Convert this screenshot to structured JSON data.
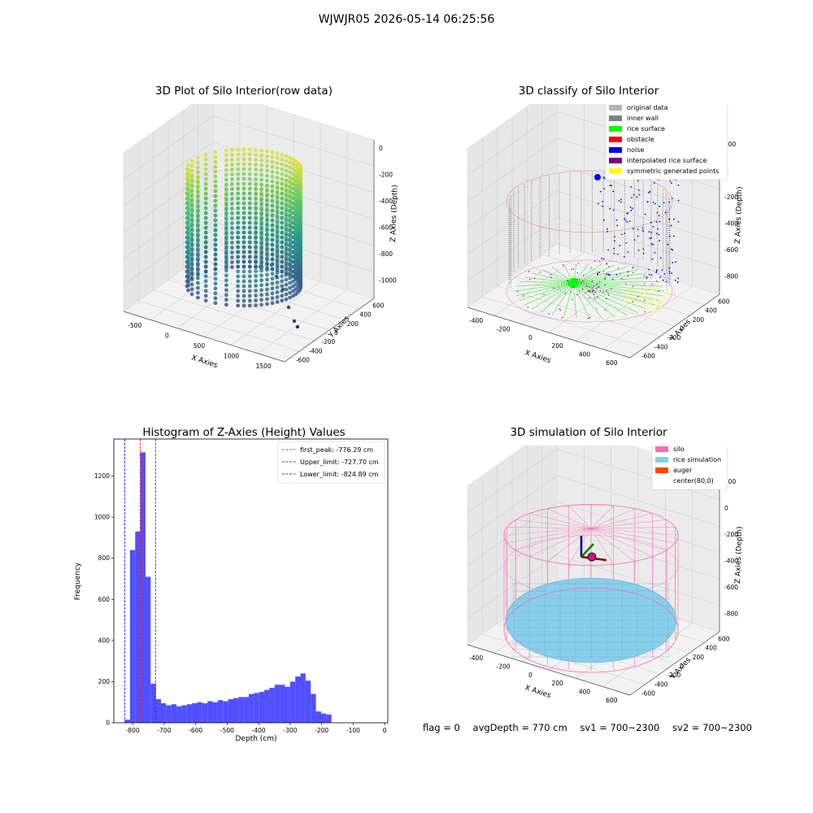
{
  "figure": {
    "suptitle": "WJWJR05 2026-05-14 06:25:56"
  },
  "status": {
    "flag": "flag = 0",
    "avg_depth": "avgDepth = 770 cm",
    "sv1": "sv1 = 700~2300",
    "sv2": "sv2 = 700~2300"
  },
  "chart_data": [
    {
      "type": "scatter",
      "projection": "3d",
      "title": "3D Plot of Silo Interior(row data)",
      "xlabel": "X Axies",
      "ylabel": "Y Axies",
      "zlabel": "Z Axies (Depth)",
      "x_ticks": [
        "-500",
        "0",
        "500",
        "1000",
        "1500"
      ],
      "y_ticks": [
        "600",
        "400",
        "200",
        "0",
        "-200",
        "-400",
        "-600"
      ],
      "z_ticks": [
        "0",
        "-200",
        "-400",
        "-600",
        "-800",
        "-1000"
      ],
      "colormap": "viridis",
      "grid": true
    },
    {
      "type": "scatter",
      "projection": "3d",
      "title": "3D classify of Silo Interior",
      "xlabel": "X Axies",
      "ylabel": "Y Axies",
      "zlabel": "Z Axies (Depth)",
      "x_ticks": [
        "-400",
        "-200",
        "0",
        "200",
        "400",
        "600"
      ],
      "y_ticks": [
        "600",
        "400",
        "200",
        "0",
        "-200",
        "-400",
        "-600"
      ],
      "z_ticks": [
        "200",
        "0",
        "-200",
        "-400",
        "-600",
        "-800"
      ],
      "legend": [
        {
          "label": "original data",
          "color": "#b4b4b4"
        },
        {
          "label": "inner wall",
          "color": "#808080"
        },
        {
          "label": "rice surface",
          "color": "#00ff00"
        },
        {
          "label": "obstacle",
          "color": "#ff0000"
        },
        {
          "label": "noise",
          "color": "#0000ff"
        },
        {
          "label": "interpolated rice surface",
          "color": "#800080"
        },
        {
          "label": "symmetric generated points",
          "color": "#ffff00"
        }
      ],
      "legend_position": "top-right",
      "grid": true
    },
    {
      "type": "bar",
      "title": "Histogram of Z-Axies (Height) Values",
      "xlabel": "Depth (cm)",
      "ylabel": "Frequency",
      "xlim": [
        -860,
        10
      ],
      "ylim": [
        0,
        1380
      ],
      "x_ticks": [
        -800,
        -700,
        -600,
        -500,
        -400,
        -300,
        -200,
        -100,
        0
      ],
      "y_ticks": [
        0,
        200,
        400,
        600,
        800,
        1000,
        1200
      ],
      "bin_start": -825,
      "bin_width": 16.4,
      "values": [
        15,
        840,
        930,
        1315,
        710,
        190,
        115,
        95,
        85,
        90,
        80,
        85,
        90,
        95,
        100,
        95,
        105,
        100,
        110,
        105,
        115,
        120,
        125,
        125,
        140,
        145,
        150,
        160,
        170,
        185,
        185,
        175,
        200,
        225,
        240,
        205,
        140,
        55,
        45,
        40
      ],
      "bar_color": "#5050ff",
      "lines": [
        {
          "label": "first_peak: -776.29 cm",
          "x": -776.29,
          "color": "#ff0000"
        },
        {
          "label": "Upper_limit: -727.70 cm",
          "x": -727.7,
          "color": "#0000ff"
        },
        {
          "label": "Lower_limit: -824.89 cm",
          "x": -824.89,
          "color": "#0000ff"
        }
      ],
      "legend_position": "top-right"
    },
    {
      "type": "scatter",
      "projection": "3d",
      "title": "3D simulation of Silo Interior",
      "xlabel": "X Axies",
      "ylabel": "Y Axies",
      "zlabel": "Z Axies (Depth)",
      "x_ticks": [
        "-400",
        "-200",
        "0",
        "200",
        "400",
        "600"
      ],
      "y_ticks": [
        "600",
        "400",
        "200",
        "0",
        "-200",
        "-400",
        "-600"
      ],
      "z_ticks": [
        "200",
        "0",
        "-200",
        "-400",
        "-600",
        "-800"
      ],
      "legend": [
        {
          "label": "silo",
          "color": "#ff69b4"
        },
        {
          "label": "rice simulation",
          "color": "#87ceeb"
        },
        {
          "label": "auger",
          "color": "#ff4500"
        },
        {
          "label": "center(80,0)",
          "color": ""
        }
      ],
      "legend_position": "top-right",
      "grid": true
    }
  ]
}
